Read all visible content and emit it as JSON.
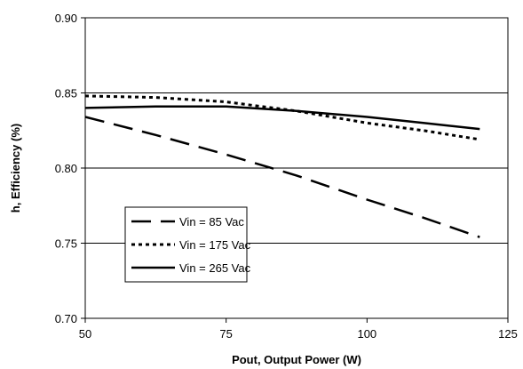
{
  "chart_data": {
    "type": "line",
    "title": "",
    "xlabel": "Pout, Output Power (W)",
    "ylabel": "h, Efficiency (%)",
    "xlim": [
      50,
      125
    ],
    "ylim": [
      0.7,
      0.9
    ],
    "xticks": [
      50,
      75,
      100,
      125
    ],
    "yticks": [
      0.7,
      0.75,
      0.8,
      0.85,
      0.9
    ],
    "xtick_labels": [
      "50",
      "75",
      "100",
      "125"
    ],
    "ytick_labels": [
      "0.70",
      "0.75",
      "0.80",
      "0.85",
      "0.90"
    ],
    "grid": "horizontal",
    "legend_position": "bottom-left",
    "series": [
      {
        "name": "Vin = 85 Vac",
        "line_style": "long-dash",
        "x": [
          50,
          62.5,
          75,
          87.5,
          100,
          110,
          120
        ],
        "y": [
          0.834,
          0.822,
          0.809,
          0.795,
          0.779,
          0.767,
          0.754
        ]
      },
      {
        "name": "Vin = 175 Vac",
        "line_style": "dotted",
        "x": [
          50,
          62.5,
          75,
          87.5,
          100,
          110,
          120
        ],
        "y": [
          0.848,
          0.847,
          0.844,
          0.838,
          0.83,
          0.825,
          0.819
        ]
      },
      {
        "name": "Vin = 265 Vac",
        "line_style": "solid",
        "x": [
          50,
          62.5,
          75,
          87.5,
          100,
          110,
          120
        ],
        "y": [
          0.84,
          0.841,
          0.841,
          0.838,
          0.834,
          0.83,
          0.826
        ]
      }
    ]
  }
}
